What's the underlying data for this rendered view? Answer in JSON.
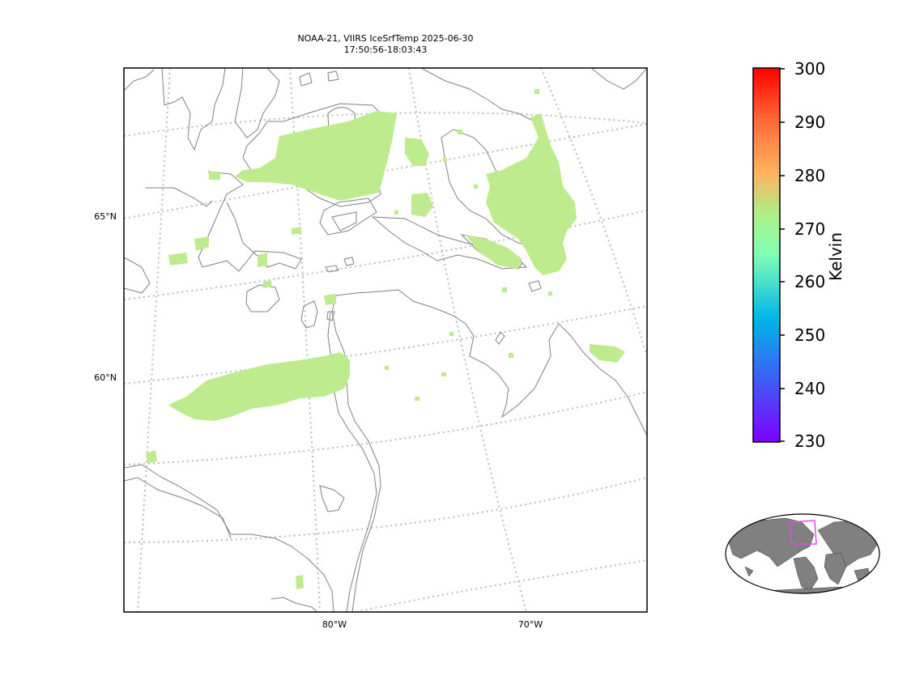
{
  "title": {
    "line1": "NOAA-21, VIIRS IceSrfTemp 2025-06-30",
    "line2": "17:50:56-18:03:43"
  },
  "map": {
    "lat_labels": [
      "65°N",
      "60°N"
    ],
    "lon_labels": [
      "80°W",
      "70°W"
    ],
    "gridline_style": "dotted gray",
    "coastline_color": "#808080"
  },
  "colorbar": {
    "label": "Kelvin",
    "ticks": [
      "300",
      "290",
      "280",
      "270",
      "260",
      "250",
      "240",
      "230"
    ],
    "min": 230,
    "max": 300,
    "colormap": "rainbow"
  },
  "data_color": "#bfeb8f",
  "inset": {
    "land_color": "#808080",
    "ocean_color": "#ffffff",
    "region_box_color": "#ee44ee"
  }
}
